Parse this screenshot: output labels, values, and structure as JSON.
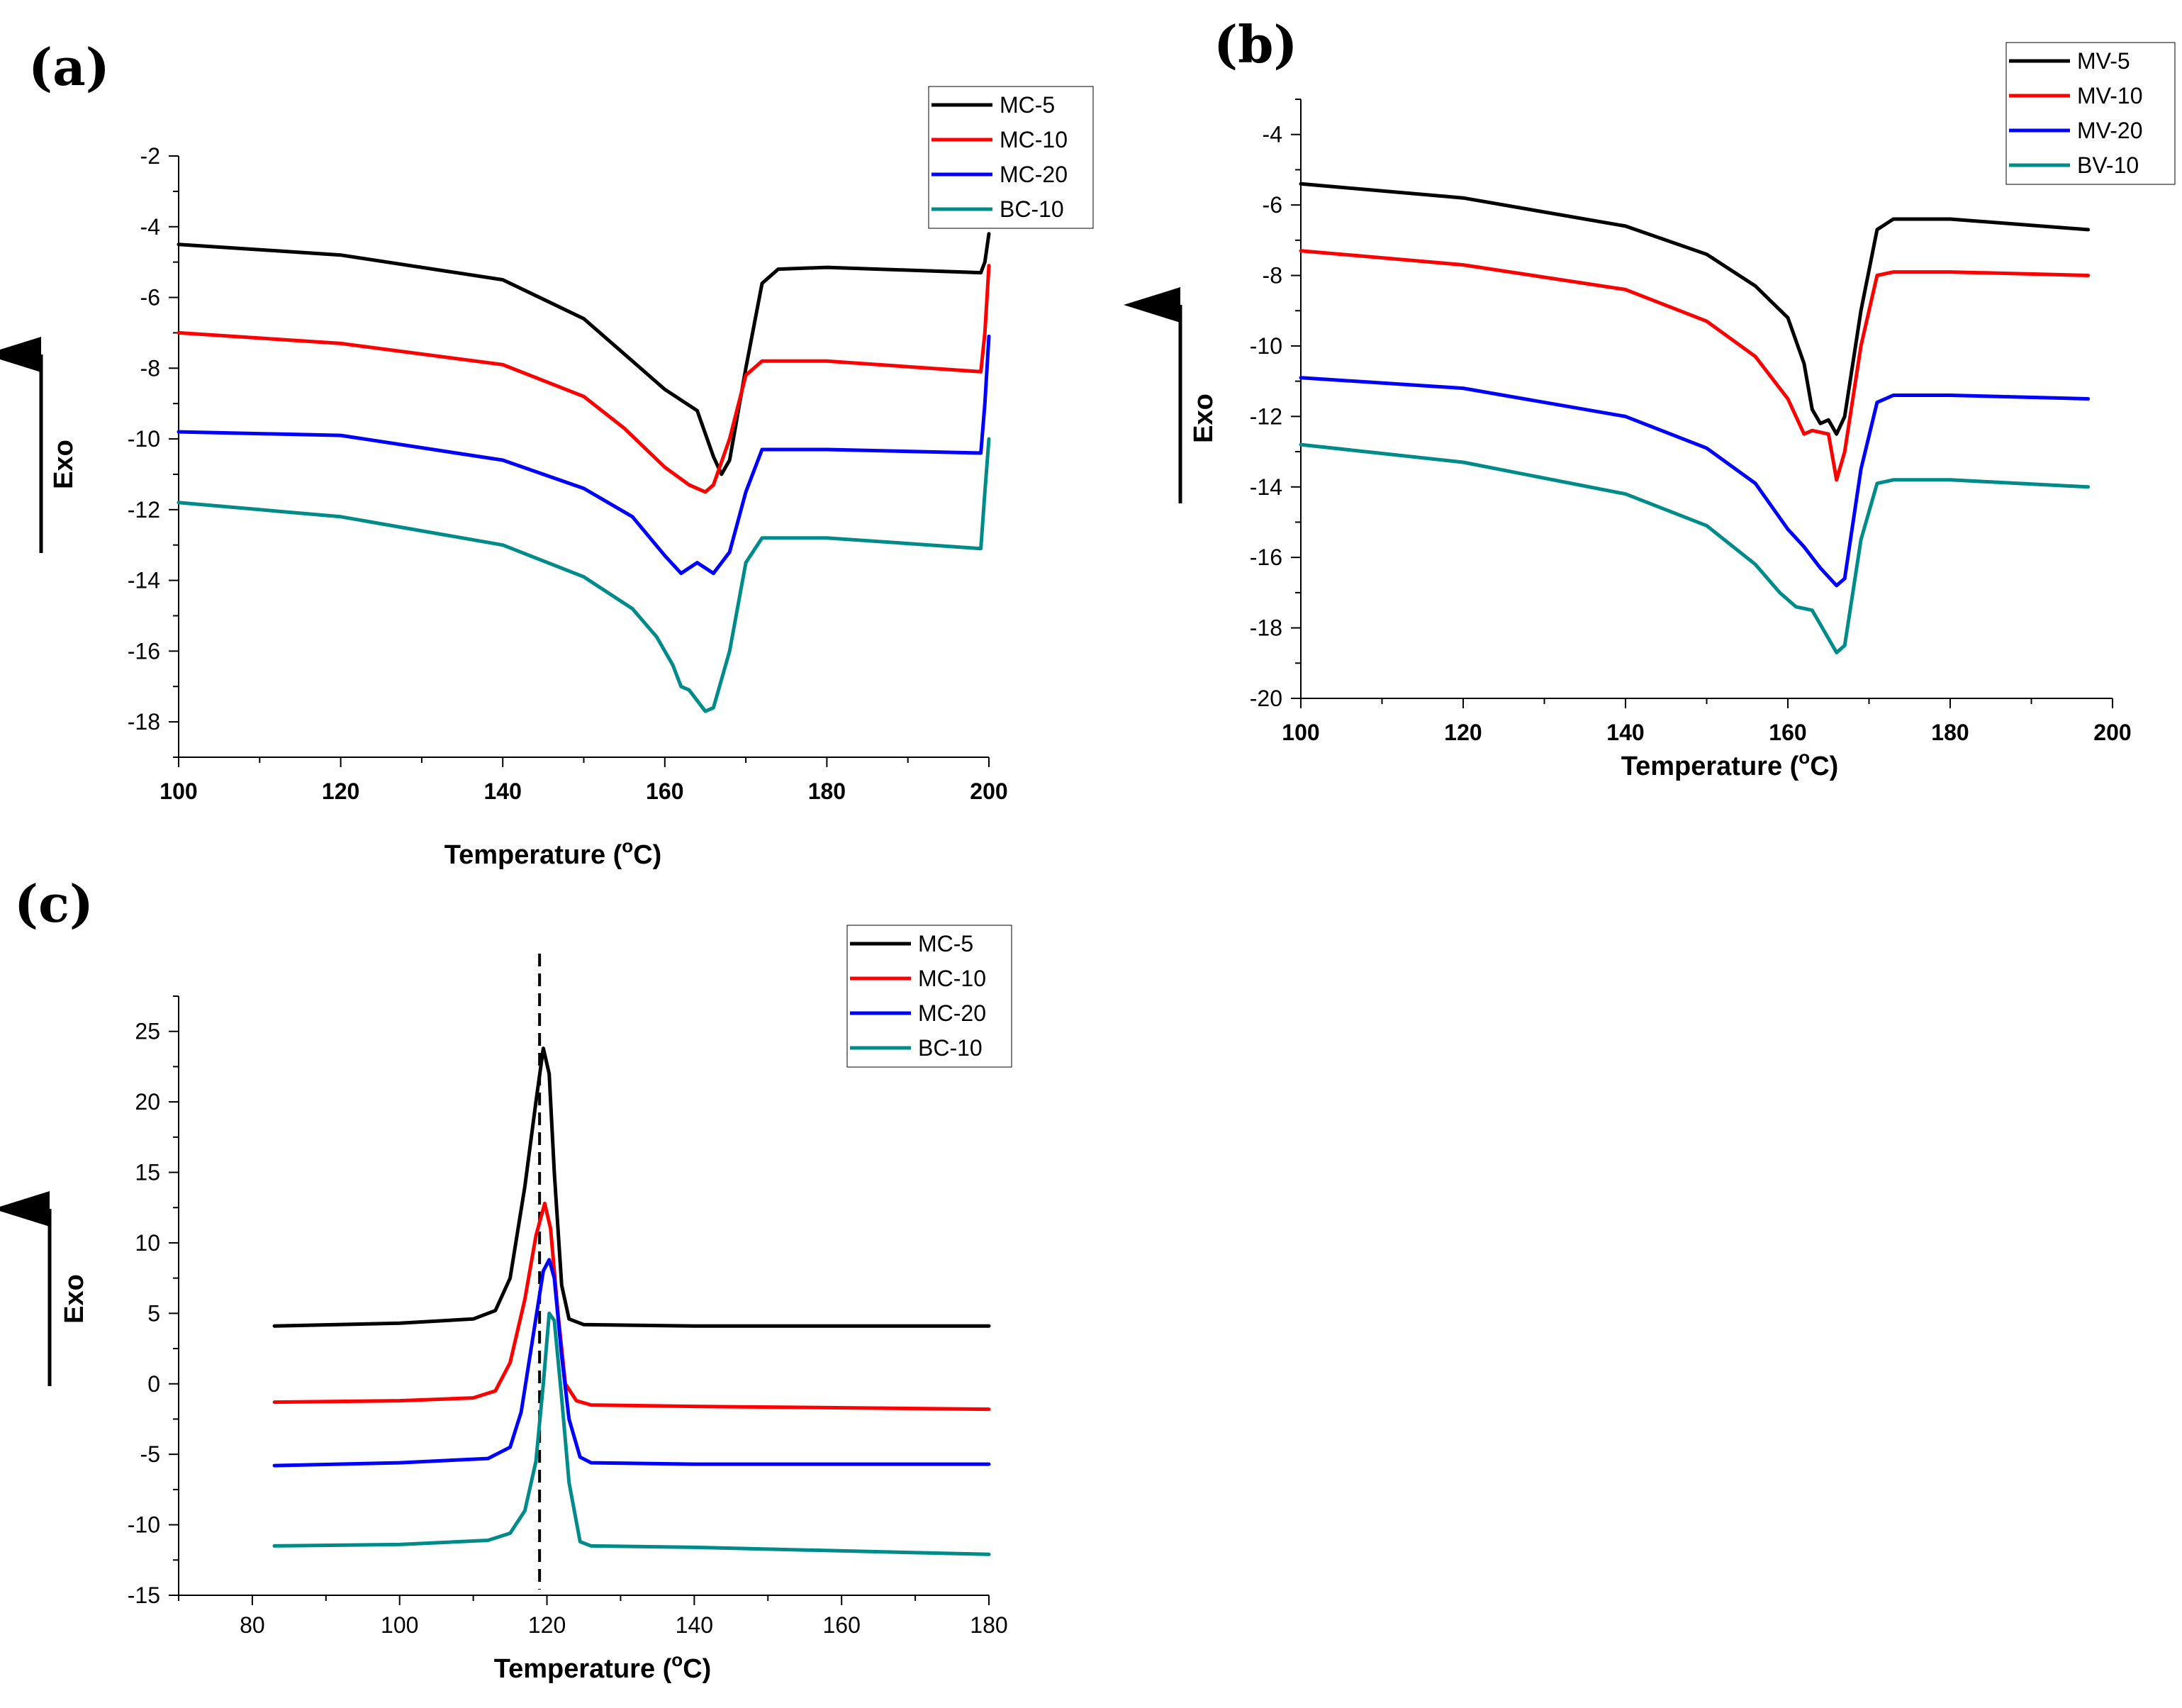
{
  "chart_data": [
    {
      "id": "a",
      "type": "line",
      "panel_label": "(a)",
      "xlabel": "Temperature (",
      "xlabel_sup": "o",
      "xlabel_end": "C)",
      "ylabel": "Exo",
      "xlim": [
        100,
        200
      ],
      "ylim": [
        -19,
        -2
      ],
      "xticks": [
        100,
        120,
        140,
        160,
        180,
        200
      ],
      "yticks": [
        -2,
        -4,
        -6,
        -8,
        -10,
        -12,
        -14,
        -16,
        -18
      ],
      "legend_position": "top-right",
      "series": [
        {
          "name": "MC-5",
          "color": "#000000",
          "points": [
            [
              100,
              -4.5
            ],
            [
              120,
              -4.8
            ],
            [
              140,
              -5.5
            ],
            [
              150,
              -6.6
            ],
            [
              156,
              -7.8
            ],
            [
              160,
              -8.6
            ],
            [
              164,
              -9.2
            ],
            [
              166,
              -10.5
            ],
            [
              167,
              -11.0
            ],
            [
              168,
              -10.6
            ],
            [
              170,
              -8.0
            ],
            [
              172,
              -5.6
            ],
            [
              174,
              -5.2
            ],
            [
              180,
              -5.15
            ],
            [
              199,
              -5.3
            ],
            [
              199.5,
              -5.0
            ],
            [
              200,
              -4.2
            ]
          ]
        },
        {
          "name": "MC-10",
          "color": "#ff0000",
          "points": [
            [
              100,
              -7.0
            ],
            [
              120,
              -7.3
            ],
            [
              140,
              -7.9
            ],
            [
              150,
              -8.8
            ],
            [
              155,
              -9.7
            ],
            [
              160,
              -10.8
            ],
            [
              163,
              -11.3
            ],
            [
              165,
              -11.5
            ],
            [
              166,
              -11.3
            ],
            [
              168,
              -10.0
            ],
            [
              170,
              -8.2
            ],
            [
              172,
              -7.8
            ],
            [
              180,
              -7.8
            ],
            [
              199,
              -8.1
            ],
            [
              199.5,
              -7.0
            ],
            [
              200,
              -5.1
            ]
          ]
        },
        {
          "name": "MC-20",
          "color": "#0000ff",
          "points": [
            [
              100,
              -9.8
            ],
            [
              120,
              -9.9
            ],
            [
              140,
              -10.6
            ],
            [
              150,
              -11.4
            ],
            [
              156,
              -12.2
            ],
            [
              160,
              -13.3
            ],
            [
              162,
              -13.8
            ],
            [
              164,
              -13.5
            ],
            [
              166,
              -13.8
            ],
            [
              168,
              -13.2
            ],
            [
              170,
              -11.5
            ],
            [
              172,
              -10.3
            ],
            [
              180,
              -10.3
            ],
            [
              199,
              -10.4
            ],
            [
              199.5,
              -9.0
            ],
            [
              200,
              -7.1
            ]
          ]
        },
        {
          "name": "BC-10",
          "color": "#008b8b",
          "points": [
            [
              100,
              -11.8
            ],
            [
              120,
              -12.2
            ],
            [
              140,
              -13.0
            ],
            [
              150,
              -13.9
            ],
            [
              156,
              -14.8
            ],
            [
              159,
              -15.6
            ],
            [
              161,
              -16.4
            ],
            [
              162,
              -17.0
            ],
            [
              163,
              -17.1
            ],
            [
              165,
              -17.7
            ],
            [
              166,
              -17.6
            ],
            [
              168,
              -16.0
            ],
            [
              170,
              -13.5
            ],
            [
              172,
              -12.8
            ],
            [
              180,
              -12.8
            ],
            [
              199,
              -13.1
            ],
            [
              199.5,
              -11.5
            ],
            [
              200,
              -10.0
            ]
          ]
        }
      ]
    },
    {
      "id": "b",
      "type": "line",
      "panel_label": "(b)",
      "xlabel": "Temperature (",
      "xlabel_sup": "o",
      "xlabel_end": "C)",
      "ylabel": "Exo",
      "xlim": [
        100,
        200
      ],
      "ylim": [
        -20,
        -3
      ],
      "xticks": [
        100,
        120,
        140,
        160,
        180,
        200
      ],
      "yticks": [
        -4,
        -6,
        -8,
        -10,
        -12,
        -14,
        -16,
        -18,
        -20
      ],
      "legend_position": "top-right",
      "series": [
        {
          "name": "MV-5",
          "color": "#000000",
          "points": [
            [
              100,
              -5.4
            ],
            [
              120,
              -5.8
            ],
            [
              140,
              -6.6
            ],
            [
              150,
              -7.4
            ],
            [
              156,
              -8.3
            ],
            [
              160,
              -9.2
            ],
            [
              162,
              -10.5
            ],
            [
              163,
              -11.8
            ],
            [
              164,
              -12.2
            ],
            [
              165,
              -12.1
            ],
            [
              166,
              -12.5
            ],
            [
              167,
              -12.0
            ],
            [
              169,
              -9.0
            ],
            [
              171,
              -6.7
            ],
            [
              173,
              -6.4
            ],
            [
              180,
              -6.4
            ],
            [
              197,
              -6.7
            ]
          ]
        },
        {
          "name": "MV-10",
          "color": "#ff0000",
          "points": [
            [
              100,
              -7.3
            ],
            [
              120,
              -7.7
            ],
            [
              140,
              -8.4
            ],
            [
              150,
              -9.3
            ],
            [
              156,
              -10.3
            ],
            [
              160,
              -11.5
            ],
            [
              162,
              -12.5
            ],
            [
              163,
              -12.4
            ],
            [
              165,
              -12.5
            ],
            [
              166,
              -13.8
            ],
            [
              167,
              -13.0
            ],
            [
              169,
              -10.0
            ],
            [
              171,
              -8.0
            ],
            [
              173,
              -7.9
            ],
            [
              180,
              -7.9
            ],
            [
              197,
              -8.0
            ]
          ]
        },
        {
          "name": "MV-20",
          "color": "#0000ff",
          "points": [
            [
              100,
              -10.9
            ],
            [
              120,
              -11.2
            ],
            [
              140,
              -12.0
            ],
            [
              150,
              -12.9
            ],
            [
              156,
              -13.9
            ],
            [
              160,
              -15.2
            ],
            [
              162,
              -15.7
            ],
            [
              164,
              -16.3
            ],
            [
              166,
              -16.8
            ],
            [
              167,
              -16.6
            ],
            [
              169,
              -13.5
            ],
            [
              171,
              -11.6
            ],
            [
              173,
              -11.4
            ],
            [
              180,
              -11.4
            ],
            [
              197,
              -11.5
            ]
          ]
        },
        {
          "name": "BV-10",
          "color": "#008b8b",
          "points": [
            [
              100,
              -12.8
            ],
            [
              120,
              -13.3
            ],
            [
              140,
              -14.2
            ],
            [
              150,
              -15.1
            ],
            [
              156,
              -16.2
            ],
            [
              159,
              -17.0
            ],
            [
              161,
              -17.4
            ],
            [
              163,
              -17.5
            ],
            [
              165,
              -18.3
            ],
            [
              166,
              -18.7
            ],
            [
              167,
              -18.5
            ],
            [
              169,
              -15.5
            ],
            [
              171,
              -13.9
            ],
            [
              173,
              -13.8
            ],
            [
              180,
              -13.8
            ],
            [
              197,
              -14.0
            ]
          ]
        }
      ]
    },
    {
      "id": "c",
      "type": "line",
      "panel_label": "(c)",
      "xlabel": "Temperature (",
      "xlabel_sup": "o",
      "xlabel_end": "C)",
      "ylabel": "Exo",
      "xlim": [
        70,
        180
      ],
      "ylim": [
        -15,
        27.5
      ],
      "xticks": [
        80,
        100,
        120,
        140,
        160,
        180
      ],
      "yticks": [
        25,
        20,
        15,
        10,
        5,
        0,
        -5,
        -10,
        -15
      ],
      "legend_position": "top-right",
      "reference_line_x": 119,
      "series": [
        {
          "name": "MC-5",
          "color": "#000000",
          "points": [
            [
              83,
              4.1
            ],
            [
              100,
              4.3
            ],
            [
              110,
              4.6
            ],
            [
              113,
              5.2
            ],
            [
              115,
              7.5
            ],
            [
              117,
              14.0
            ],
            [
              118.5,
              20.0
            ],
            [
              119.5,
              23.8
            ],
            [
              120.3,
              22.0
            ],
            [
              121,
              15.0
            ],
            [
              122,
              7.0
            ],
            [
              123,
              4.6
            ],
            [
              125,
              4.2
            ],
            [
              140,
              4.1
            ],
            [
              180,
              4.1
            ]
          ]
        },
        {
          "name": "MC-10",
          "color": "#ff0000",
          "points": [
            [
              83,
              -1.3
            ],
            [
              100,
              -1.2
            ],
            [
              110,
              -1.0
            ],
            [
              113,
              -0.5
            ],
            [
              115,
              1.5
            ],
            [
              117,
              6.0
            ],
            [
              118.5,
              10.5
            ],
            [
              119.7,
              12.8
            ],
            [
              120.5,
              11.0
            ],
            [
              121.5,
              5.0
            ],
            [
              122.5,
              0.0
            ],
            [
              124,
              -1.2
            ],
            [
              126,
              -1.5
            ],
            [
              140,
              -1.6
            ],
            [
              180,
              -1.8
            ]
          ]
        },
        {
          "name": "MC-20",
          "color": "#0000ff",
          "points": [
            [
              83,
              -5.8
            ],
            [
              100,
              -5.6
            ],
            [
              112,
              -5.3
            ],
            [
              115,
              -4.5
            ],
            [
              116.5,
              -2.0
            ],
            [
              118,
              3.0
            ],
            [
              119.5,
              8.0
            ],
            [
              120.3,
              8.8
            ],
            [
              121,
              7.5
            ],
            [
              122,
              2.0
            ],
            [
              123,
              -2.5
            ],
            [
              124.5,
              -5.2
            ],
            [
              126,
              -5.6
            ],
            [
              140,
              -5.7
            ],
            [
              180,
              -5.7
            ]
          ]
        },
        {
          "name": "BC-10",
          "color": "#008b8b",
          "points": [
            [
              83,
              -11.5
            ],
            [
              100,
              -11.4
            ],
            [
              112,
              -11.1
            ],
            [
              115,
              -10.6
            ],
            [
              117,
              -9.0
            ],
            [
              118.5,
              -5.5
            ],
            [
              119.5,
              0.0
            ],
            [
              120.3,
              5.0
            ],
            [
              121,
              4.5
            ],
            [
              122,
              -1.0
            ],
            [
              123,
              -7.0
            ],
            [
              124.5,
              -11.2
            ],
            [
              126,
              -11.5
            ],
            [
              140,
              -11.6
            ],
            [
              180,
              -12.1
            ]
          ]
        }
      ]
    }
  ]
}
